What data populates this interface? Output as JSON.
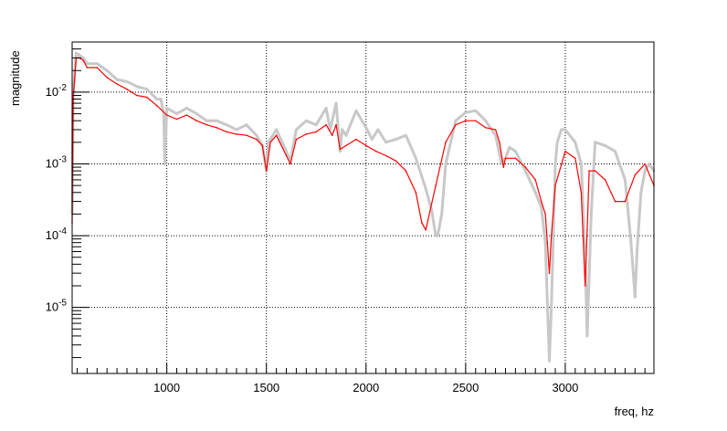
{
  "chart_data": {
    "type": "line",
    "title": "",
    "xlabel": "freq, hz",
    "ylabel": "magnitude",
    "xlim": [
      525,
      3445
    ],
    "ylim": [
      1.2e-06,
      0.05
    ],
    "y_scale": "log",
    "grid": true,
    "legend": "none",
    "x_ticks": [
      {
        "value": 1000,
        "label": "1000"
      },
      {
        "value": 1500,
        "label": "1500"
      },
      {
        "value": 2000,
        "label": "2000"
      },
      {
        "value": 2500,
        "label": "2500"
      },
      {
        "value": 3000,
        "label": "3000"
      }
    ],
    "y_ticks": [
      {
        "value": 0.01,
        "base": "10",
        "exp": "-2"
      },
      {
        "value": 0.001,
        "base": "10",
        "exp": "-3"
      },
      {
        "value": 0.0001,
        "base": "10",
        "exp": "-4"
      },
      {
        "value": 1e-05,
        "base": "10",
        "exp": "-5"
      }
    ],
    "series": [
      {
        "color": "#c8c8c8",
        "x": [
          525,
          530,
          545,
          560,
          580,
          600,
          650,
          700,
          750,
          800,
          850,
          900,
          950,
          970,
          985,
          990,
          1000,
          1050,
          1100,
          1150,
          1200,
          1250,
          1300,
          1350,
          1400,
          1450,
          1480,
          1500,
          1510,
          1550,
          1600,
          1620,
          1650,
          1700,
          1750,
          1800,
          1820,
          1850,
          1870,
          1880,
          1900,
          1950,
          2000,
          2030,
          2060,
          2100,
          2150,
          2200,
          2250,
          2300,
          2330,
          2350,
          2360,
          2380,
          2400,
          2450,
          2500,
          2550,
          2600,
          2650,
          2680,
          2700,
          2720,
          2750,
          2800,
          2850,
          2880,
          2900,
          2910,
          2920,
          2930,
          2950,
          2960,
          2980,
          3000,
          3050,
          3080,
          3100,
          3110,
          3130,
          3150,
          3200,
          3250,
          3300,
          3330,
          3350,
          3360,
          3380,
          3400,
          3420,
          3445
        ],
        "y": [
          0.0002,
          0.009,
          0.035,
          0.033,
          0.03,
          0.025,
          0.025,
          0.02,
          0.015,
          0.014,
          0.012,
          0.011,
          0.008,
          0.008,
          0.005,
          0.001,
          0.006,
          0.005,
          0.006,
          0.005,
          0.004,
          0.004,
          0.0035,
          0.003,
          0.0035,
          0.0025,
          0.0018,
          0.0008,
          0.002,
          0.003,
          0.0015,
          0.0011,
          0.003,
          0.004,
          0.0035,
          0.006,
          0.003,
          0.007,
          0.0015,
          0.003,
          0.0025,
          0.0055,
          0.0032,
          0.0022,
          0.003,
          0.002,
          0.0022,
          0.0025,
          0.0012,
          0.00045,
          0.00022,
          0.0001,
          0.0001,
          0.0002,
          0.001,
          0.004,
          0.0052,
          0.0055,
          0.004,
          0.0025,
          0.001,
          0.0012,
          0.0017,
          0.0015,
          0.0008,
          0.0004,
          0.00025,
          8e-05,
          1.2e-05,
          1.8e-06,
          1e-05,
          0.001,
          0.002,
          0.003,
          0.003,
          0.002,
          0.001,
          5e-05,
          4e-06,
          0.0002,
          0.002,
          0.0018,
          0.0015,
          0.0006,
          8e-05,
          1.4e-05,
          6e-05,
          0.0004,
          0.0008,
          0.001,
          0.0008
        ]
      },
      {
        "color": "#ff0000",
        "x": [
          525,
          530,
          545,
          560,
          580,
          600,
          650,
          700,
          750,
          800,
          850,
          900,
          950,
          1000,
          1050,
          1100,
          1150,
          1200,
          1250,
          1300,
          1350,
          1400,
          1450,
          1480,
          1500,
          1520,
          1550,
          1600,
          1620,
          1650,
          1700,
          1750,
          1800,
          1830,
          1850,
          1870,
          1900,
          1950,
          2000,
          2050,
          2100,
          2150,
          2200,
          2250,
          2280,
          2300,
          2350,
          2400,
          2450,
          2500,
          2550,
          2600,
          2650,
          2670,
          2690,
          2700,
          2750,
          2800,
          2850,
          2880,
          2900,
          2910,
          2920,
          2930,
          2950,
          3000,
          3050,
          3080,
          3100,
          3110,
          3120,
          3150,
          3200,
          3250,
          3300,
          3350,
          3400,
          3445
        ],
        "y": [
          0.00015,
          0.008,
          0.03,
          0.03,
          0.028,
          0.022,
          0.022,
          0.016,
          0.013,
          0.011,
          0.009,
          0.0085,
          0.0065,
          0.0048,
          0.0042,
          0.0048,
          0.004,
          0.0035,
          0.0032,
          0.0028,
          0.0026,
          0.0025,
          0.0022,
          0.0018,
          0.0008,
          0.002,
          0.0025,
          0.0013,
          0.001,
          0.0022,
          0.0026,
          0.0028,
          0.0035,
          0.0025,
          0.0035,
          0.0016,
          0.0018,
          0.0022,
          0.0018,
          0.0015,
          0.0013,
          0.0011,
          0.0008,
          0.0004,
          0.00015,
          0.00012,
          0.0005,
          0.002,
          0.0035,
          0.004,
          0.004,
          0.0032,
          0.003,
          0.002,
          0.0009,
          0.0012,
          0.0012,
          0.0009,
          0.0006,
          0.0003,
          0.0002,
          8e-05,
          3e-05,
          0.0001,
          0.0005,
          0.0015,
          0.0012,
          0.0004,
          2e-05,
          0.00012,
          0.0008,
          0.0008,
          0.0006,
          0.0003,
          0.0003,
          0.0007,
          0.001,
          0.0005
        ]
      }
    ]
  }
}
